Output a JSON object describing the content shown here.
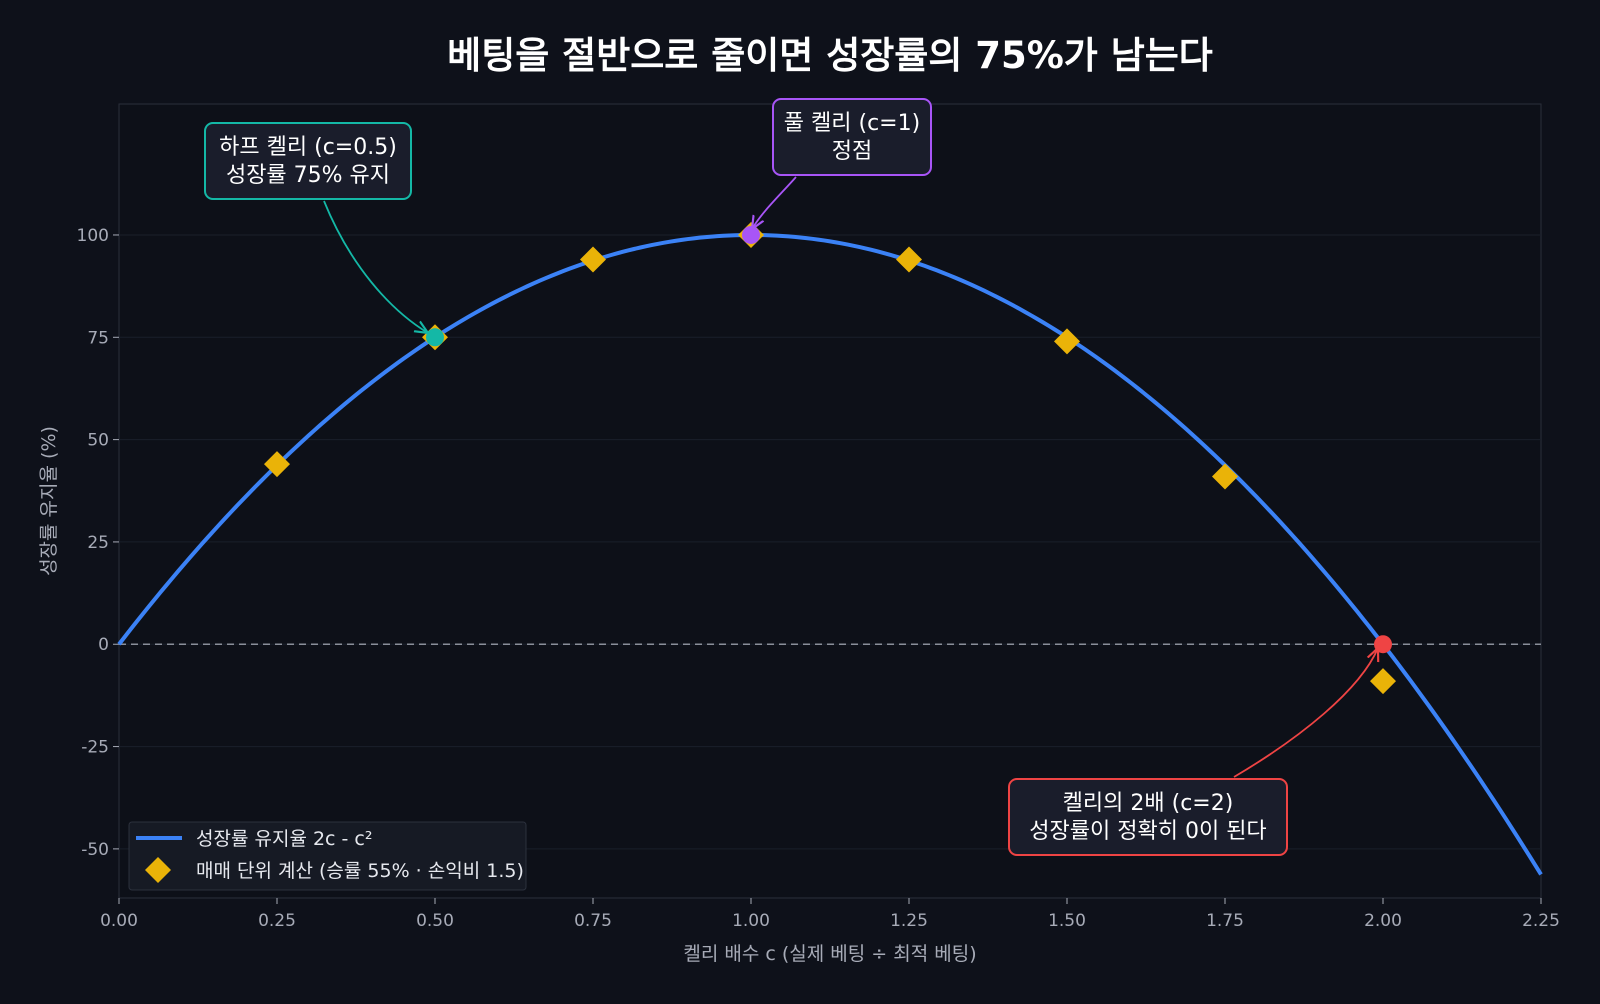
{
  "chart_data": {
    "type": "line",
    "title": "베팅을 절반으로 줄이면 성장률의 75%가 남는다",
    "xlabel": "켈리 배수 c  (실제 베팅 ÷ 최적 베팅)",
    "ylabel": "성장률 유지율 (%)",
    "xlim": [
      0,
      2.25
    ],
    "ylim": [
      -62,
      132
    ],
    "x_ticks": [
      "0.00",
      "0.25",
      "0.50",
      "0.75",
      "1.00",
      "1.25",
      "1.50",
      "1.75",
      "2.00",
      "2.25"
    ],
    "y_ticks": [
      "-50",
      "-25",
      "0",
      "25",
      "50",
      "75",
      "100"
    ],
    "grid": true,
    "legend_position": "bottom-left",
    "colors": {
      "curve": "#3b82f6",
      "diamond": "#eab308",
      "half": "#14b8a6",
      "full": "#a855f7",
      "double": "#ef4444",
      "background": "#0e111a"
    },
    "series": [
      {
        "name": "성장률 유지율  2c - c²",
        "kind": "curve",
        "formula": "2c - c²",
        "x_range": [
          0,
          2.25
        ]
      },
      {
        "name": "매매 단위 계산 (승률 55% · 손익비 1.5)",
        "kind": "diamond",
        "x": [
          0.25,
          0.5,
          0.75,
          1.0,
          1.25,
          1.5,
          1.75,
          2.0
        ],
        "y": [
          44,
          75,
          94,
          100,
          94,
          74,
          41,
          -9
        ]
      }
    ],
    "highlights": [
      {
        "x": 0.5,
        "y": 75,
        "color": "#14b8a6"
      },
      {
        "x": 1.0,
        "y": 100,
        "color": "#a855f7"
      },
      {
        "x": 2.0,
        "y": 0,
        "color": "#ef4444"
      }
    ],
    "annotations": [
      {
        "lines": [
          "하프 켈리 (c=0.5)",
          "성장률 75% 유지"
        ],
        "target_x": 0.5,
        "target_y": 75,
        "color": "#14b8a6"
      },
      {
        "lines": [
          "풀 켈리 (c=1)",
          "정점"
        ],
        "target_x": 1.0,
        "target_y": 100,
        "color": "#a855f7"
      },
      {
        "lines": [
          "켈리의 2배 (c=2)",
          "성장률이 정확히 0이 된다"
        ],
        "target_x": 2.0,
        "target_y": 0,
        "color": "#ef4444"
      }
    ]
  }
}
